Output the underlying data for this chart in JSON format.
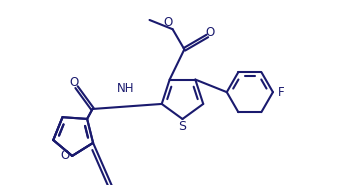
{
  "bg_color": "#ffffff",
  "line_color": "#1a1a6e",
  "line_width": 1.5,
  "font_size": 8.5,
  "fig_width": 3.44,
  "fig_height": 1.86,
  "dpi": 100,
  "xlim": [
    -4.0,
    3.5
  ],
  "ylim": [
    -2.2,
    2.2
  ]
}
